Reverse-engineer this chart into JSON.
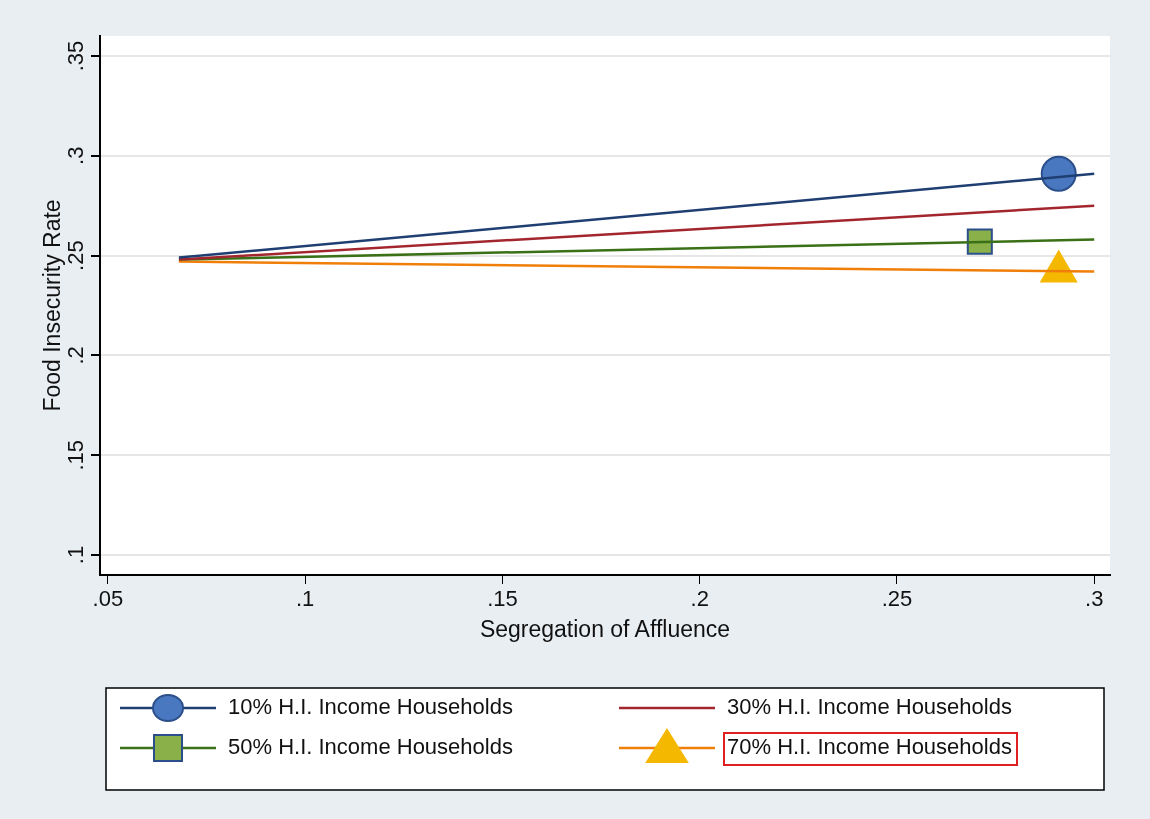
{
  "chart_data": {
    "type": "line",
    "xlabel": "Segregation of Affluence",
    "ylabel": "Food Insecurity Rate",
    "xlim": [
      0.048,
      0.304
    ],
    "ylim": [
      0.09,
      0.36
    ],
    "xticks": [
      {
        "value": 0.05,
        "label": ".05"
      },
      {
        "value": 0.1,
        "label": ".1"
      },
      {
        "value": 0.15,
        "label": ".15"
      },
      {
        "value": 0.2,
        "label": ".2"
      },
      {
        "value": 0.25,
        "label": ".25"
      },
      {
        "value": 0.3,
        "label": ".3"
      }
    ],
    "yticks": [
      {
        "value": 0.1,
        "label": ".1"
      },
      {
        "value": 0.15,
        "label": ".15"
      },
      {
        "value": 0.2,
        "label": ".2"
      },
      {
        "value": 0.25,
        "label": ".25"
      },
      {
        "value": 0.3,
        "label": ".3"
      },
      {
        "value": 0.35,
        "label": ".35"
      }
    ],
    "grid": "y",
    "legend": "bottom",
    "line_style": "solid",
    "series": [
      {
        "name": "10% H.I. Income Households",
        "color": "#1f3f73",
        "x": [
          0.068,
          0.3
        ],
        "values": [
          0.249,
          0.291
        ]
      },
      {
        "name": "30% H.I. Income Households",
        "color": "#a3262e",
        "x": [
          0.068,
          0.3
        ],
        "values": [
          0.248,
          0.275
        ]
      },
      {
        "name": "50% H.I. Income Households",
        "color": "#3a7016",
        "x": [
          0.068,
          0.3
        ],
        "values": [
          0.248,
          0.258
        ]
      },
      {
        "name": "70% H.I. Income Households",
        "color": "#f07f0a",
        "x": [
          0.068,
          0.3
        ],
        "values": [
          0.247,
          0.242
        ]
      },
      {
        "type": "scatter",
        "color": "#4a78c0",
        "marker": "circle",
        "x": [
          0.291
        ],
        "values": [
          0.291
        ]
      },
      {
        "type": "scatter",
        "color": "#8ab04a",
        "marker": "square",
        "x": [
          0.271
        ],
        "values": [
          0.257
        ]
      },
      {
        "type": "scatter",
        "color": "#f5b800",
        "marker": "triangle",
        "x": [
          0.291
        ],
        "values": [
          0.242
        ]
      }
    ]
  }
}
